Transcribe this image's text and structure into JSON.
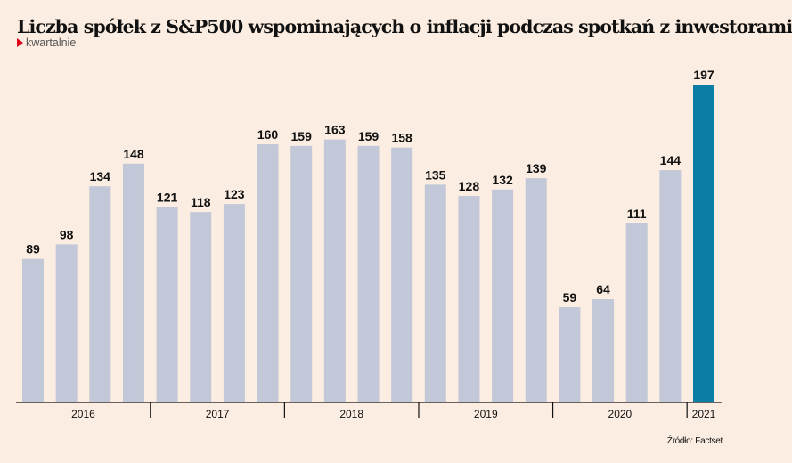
{
  "title": "Liczba spółek z S&P500 wspominających o inflacji podczas spotkań z inwestorami",
  "subtitle": "kwartalnie",
  "source": "Źródło: Factset",
  "chart_data": {
    "type": "bar",
    "values": [
      89,
      98,
      134,
      148,
      121,
      118,
      123,
      160,
      159,
      163,
      159,
      158,
      135,
      128,
      132,
      139,
      59,
      64,
      111,
      144,
      197
    ],
    "year_groups": [
      {
        "label": "2016",
        "quarters": 4
      },
      {
        "label": "2017",
        "quarters": 4
      },
      {
        "label": "2018",
        "quarters": 4
      },
      {
        "label": "2019",
        "quarters": 4
      },
      {
        "label": "2020",
        "quarters": 4
      },
      {
        "label": "2021",
        "quarters": 1
      }
    ],
    "ylim": [
      0,
      197
    ],
    "grid": false,
    "colors": {
      "bar": "#c2c8d8",
      "highlight": "#0a7ea4",
      "highlight_index": 20
    }
  }
}
